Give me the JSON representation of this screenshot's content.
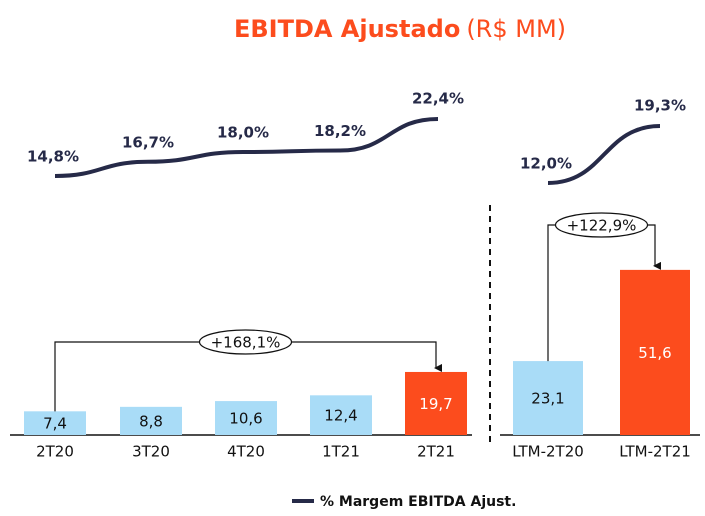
{
  "title": {
    "main": "EBITDA Ajustado",
    "unit": "(R$ MM)"
  },
  "chart_data": [
    {
      "type": "bar",
      "categories": [
        "2T20",
        "3T20",
        "4T20",
        "1T21",
        "2T21"
      ],
      "values": [
        7.4,
        8.8,
        10.6,
        12.4,
        19.7
      ],
      "value_labels": [
        "7,4",
        "8,8",
        "10,6",
        "12,4",
        "19,7"
      ],
      "colors": [
        "#a9dcf7",
        "#a9dcf7",
        "#a9dcf7",
        "#a9dcf7",
        "#fc4c1d"
      ],
      "annotation": "+168,1%",
      "line": {
        "name": "% Margem EBITDA Ajust.",
        "color": "#262a48",
        "values": [
          14.8,
          16.7,
          18.0,
          18.2,
          22.4
        ],
        "value_labels": [
          "14,8%",
          "16,7%",
          "18,0%",
          "18,2%",
          "22,4%"
        ]
      }
    },
    {
      "type": "bar",
      "categories": [
        "LTM-2T20",
        "LTM-2T21"
      ],
      "values": [
        23.1,
        51.6
      ],
      "value_labels": [
        "23,1",
        "51,6"
      ],
      "colors": [
        "#a9dcf7",
        "#fc4c1d"
      ],
      "annotation": "+122,9%",
      "line": {
        "color": "#262a48",
        "values": [
          12.0,
          19.3
        ],
        "value_labels": [
          "12,0%",
          "19,3%"
        ]
      }
    }
  ]
}
